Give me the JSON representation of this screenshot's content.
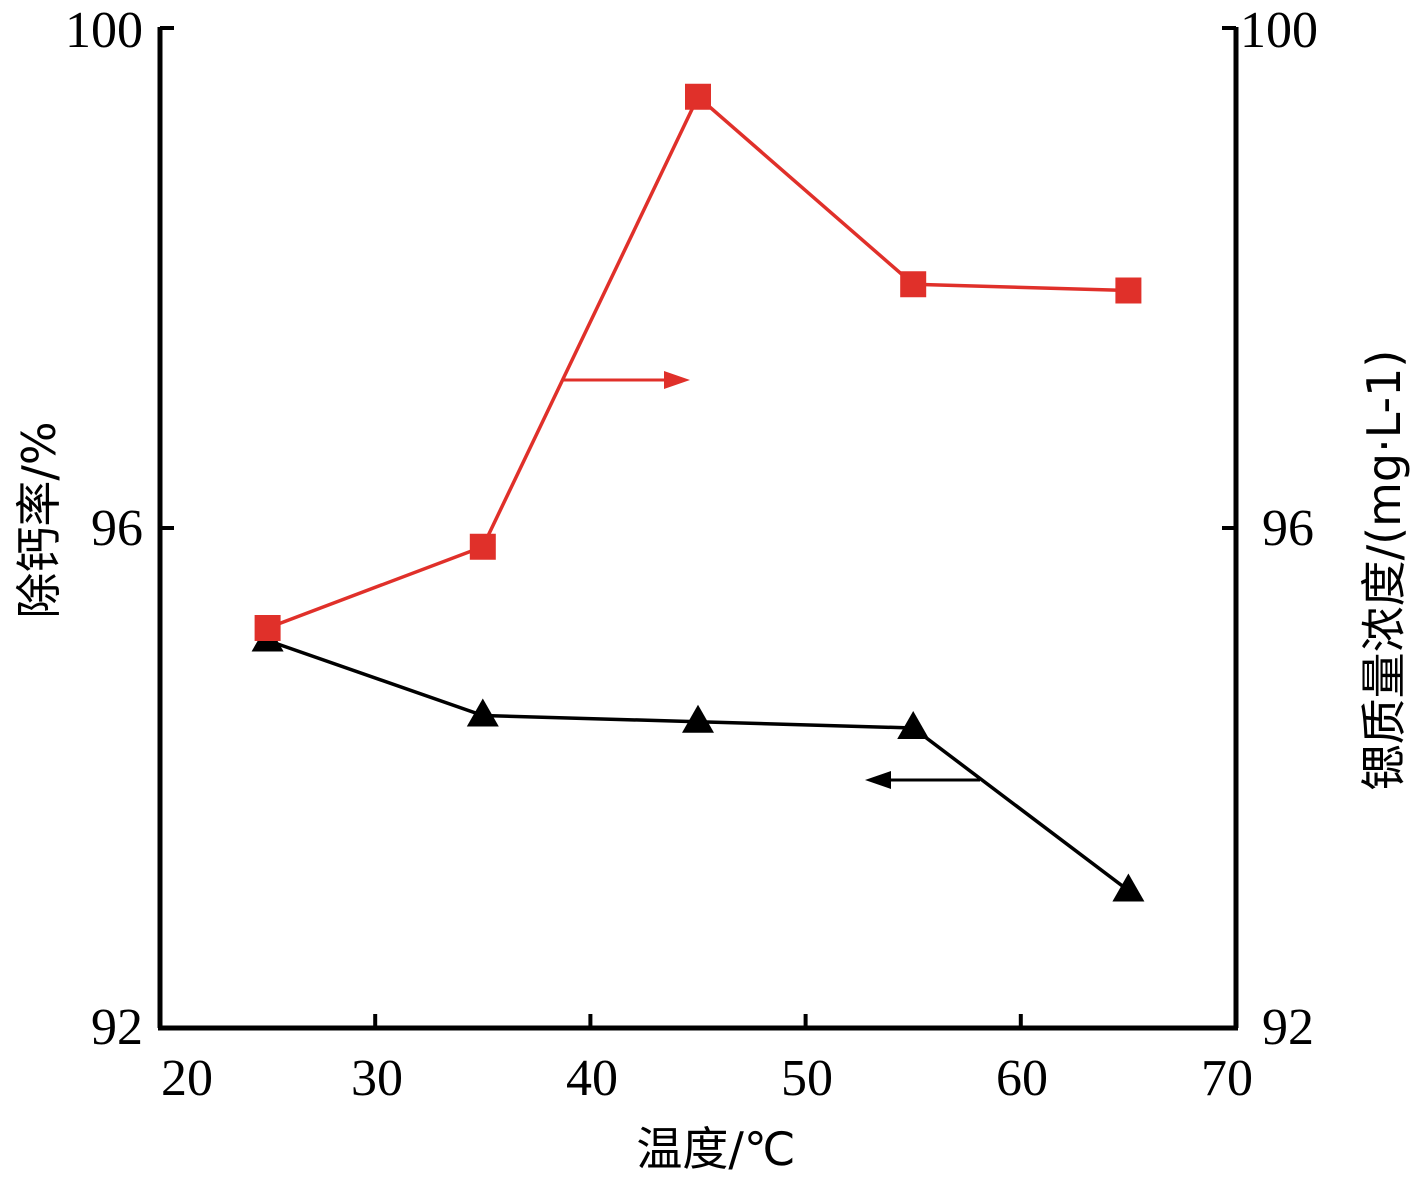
{
  "chart_data": {
    "type": "line",
    "xlabel": "温度/℃",
    "ylabel_left": "除钙率/%",
    "ylabel_right": "锶质量浓度/(mg·L-1)",
    "xlim": [
      20,
      70
    ],
    "ylim_left": [
      92,
      100
    ],
    "ylim_right": [
      92,
      100
    ],
    "x_ticks": [
      "20",
      "30",
      "40",
      "50",
      "60",
      "70"
    ],
    "y_ticks_left": [
      "92",
      "96",
      "100"
    ],
    "y_ticks_right": [
      "92",
      "96",
      "100"
    ],
    "grid": false,
    "legend": "none",
    "series": [
      {
        "axis": "left",
        "marker": "triangle",
        "color": "#000000",
        "x": [
          25,
          35,
          45,
          55,
          65
        ],
        "values": [
          95.1,
          94.5,
          94.45,
          94.4,
          93.1
        ]
      },
      {
        "axis": "right",
        "marker": "square",
        "color": "#e0302a",
        "x": [
          25,
          35,
          45,
          55,
          65
        ],
        "values": [
          95.2,
          95.85,
          99.45,
          97.95,
          97.9
        ]
      }
    ]
  }
}
